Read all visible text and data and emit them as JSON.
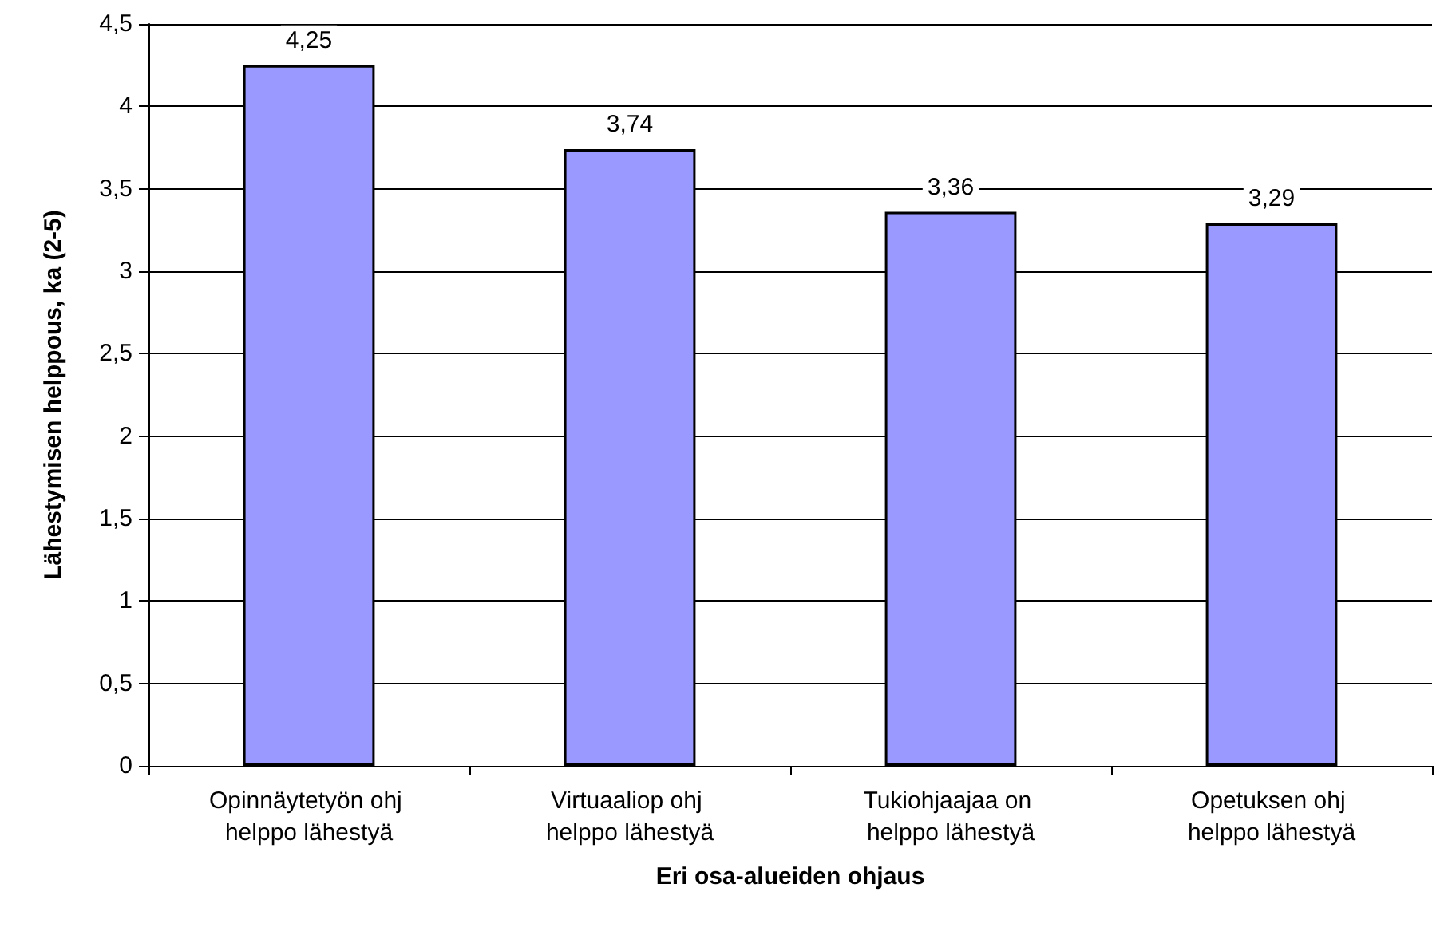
{
  "chart_data": {
    "type": "bar",
    "xlabel": "Eri osa-alueiden ohjaus",
    "ylabel": "Lähestymisen helppous, ka (2-5)",
    "categories": [
      "Opinnäytetyön ohj helppo lähestyä",
      "Virtuaaliop ohj helppo lähestyä",
      "Tukiohjaajaa on helppo lähestyä",
      "Opetuksen ohj helppo lähestyä"
    ],
    "values": [
      4.25,
      3.74,
      3.36,
      3.29
    ],
    "value_labels": [
      "4,25",
      "3,74",
      "3,36",
      "3,29"
    ],
    "color": "#9999ff",
    "ylim": [
      0,
      4.5
    ],
    "yticks": [
      0,
      {
        "value": 0.5,
        "label": "0,5"
      },
      1,
      {
        "value": 1.5,
        "label": "1,5"
      },
      2,
      {
        "value": 2.5,
        "label": "2,5"
      },
      3,
      {
        "value": 3.5,
        "label": "3,5"
      },
      4,
      {
        "value": 4.5,
        "label": "4,5"
      }
    ],
    "grid": "y"
  }
}
